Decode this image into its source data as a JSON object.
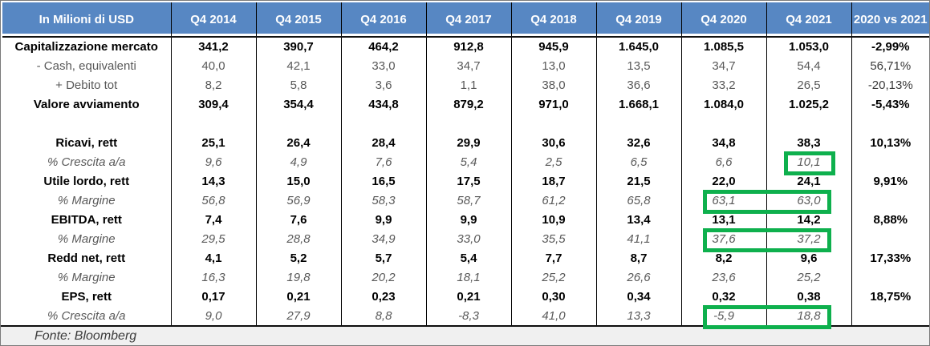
{
  "chart_data": {
    "type": "table",
    "title": "In Milioni di USD",
    "columns": [
      "In Milioni di USD",
      "Q4 2014",
      "Q4 2015",
      "Q4 2016",
      "Q4 2017",
      "Q4 2018",
      "Q4 2019",
      "Q4 2020",
      "Q4 2021",
      "2020 vs 2021"
    ],
    "rows": [
      {
        "id": "cap_mercato",
        "label": "Capitalizzazione mercato",
        "style": "bold",
        "values": [
          "341,2",
          "390,7",
          "464,2",
          "912,8",
          "945,9",
          "1.645,0",
          "1.085,5",
          "1.053,0"
        ],
        "vs": "-2,99%"
      },
      {
        "id": "cash",
        "label": "- Cash, equivalenti",
        "style": "plain",
        "values": [
          "40,0",
          "42,1",
          "33,0",
          "34,7",
          "13,0",
          "13,5",
          "34,7",
          "54,4"
        ],
        "vs": "56,71%"
      },
      {
        "id": "debito",
        "label": "+ Debito tot",
        "style": "plain",
        "values": [
          "8,2",
          "5,8",
          "3,6",
          "1,1",
          "38,0",
          "36,6",
          "33,2",
          "26,5"
        ],
        "vs": "-20,13%"
      },
      {
        "id": "valore_avv",
        "label": "Valore avviamento",
        "style": "bold",
        "values": [
          "309,4",
          "354,4",
          "434,8",
          "879,2",
          "971,0",
          "1.668,1",
          "1.084,0",
          "1.025,2"
        ],
        "vs": "-5,43%"
      },
      {
        "id": "spacer",
        "label": "",
        "style": "spacer",
        "values": [
          "",
          "",
          "",
          "",
          "",
          "",
          "",
          ""
        ],
        "vs": ""
      },
      {
        "id": "ricavi",
        "label": "Ricavi, rett",
        "style": "bold",
        "values": [
          "25,1",
          "26,4",
          "28,4",
          "29,9",
          "30,6",
          "32,6",
          "34,8",
          "38,3"
        ],
        "vs": "10,13%"
      },
      {
        "id": "ricavi_crescita",
        "label": "% Crescita a/a",
        "style": "italic",
        "values": [
          "9,6",
          "4,9",
          "7,6",
          "5,4",
          "2,5",
          "6,5",
          "6,6",
          "10,1"
        ],
        "vs": ""
      },
      {
        "id": "utile_lordo",
        "label": "Utile lordo, rett",
        "style": "bold",
        "values": [
          "14,3",
          "15,0",
          "16,5",
          "17,5",
          "18,7",
          "21,5",
          "22,0",
          "24,1"
        ],
        "vs": "9,91%"
      },
      {
        "id": "utile_margine",
        "label": "% Margine",
        "style": "italic",
        "values": [
          "56,8",
          "56,9",
          "58,3",
          "58,7",
          "61,2",
          "65,8",
          "63,1",
          "63,0"
        ],
        "vs": ""
      },
      {
        "id": "ebitda",
        "label": "EBITDA, rett",
        "style": "bold",
        "values": [
          "7,4",
          "7,6",
          "9,9",
          "9,9",
          "10,9",
          "13,4",
          "13,1",
          "14,2"
        ],
        "vs": "8,88%"
      },
      {
        "id": "ebitda_margine",
        "label": "% Margine",
        "style": "italic",
        "values": [
          "29,5",
          "28,8",
          "34,9",
          "33,0",
          "35,5",
          "41,1",
          "37,6",
          "37,2"
        ],
        "vs": ""
      },
      {
        "id": "redd_net",
        "label": "Redd net, rett",
        "style": "bold",
        "values": [
          "4,1",
          "5,2",
          "5,7",
          "5,4",
          "7,7",
          "8,7",
          "8,2",
          "9,6"
        ],
        "vs": "17,33%"
      },
      {
        "id": "redd_margine",
        "label": "% Margine",
        "style": "italic",
        "values": [
          "16,3",
          "19,8",
          "20,2",
          "18,1",
          "25,2",
          "26,6",
          "23,6",
          "25,2"
        ],
        "vs": ""
      },
      {
        "id": "eps",
        "label": "EPS, rett",
        "style": "bold",
        "values": [
          "0,17",
          "0,21",
          "0,23",
          "0,21",
          "0,30",
          "0,34",
          "0,32",
          "0,38"
        ],
        "vs": "18,75%"
      },
      {
        "id": "eps_crescita",
        "label": "% Crescita a/a",
        "style": "italic",
        "values": [
          "9,0",
          "27,9",
          "8,8",
          "-8,3",
          "41,0",
          "13,3",
          "-5,9",
          "18,8"
        ],
        "vs": ""
      }
    ],
    "highlights": [
      {
        "row_id": "ricavi_crescita",
        "col_start": 7,
        "col_end": 7
      },
      {
        "row_id": "utile_margine",
        "col_start": 6,
        "col_end": 7
      },
      {
        "row_id": "ebitda_margine",
        "col_start": 6,
        "col_end": 7
      },
      {
        "row_id": "eps_crescita",
        "col_start": 6,
        "col_end": 7
      }
    ],
    "source": "Fonte: Bloomberg",
    "layout": {
      "legend": "none",
      "grid": "black cell borders"
    },
    "colors": {
      "header_bg": "#5787c3",
      "header_text": "#ffffff",
      "bold_text": "#000000",
      "muted_text": "#595959",
      "highlight_green": "#0eb04d",
      "footer_bg": "#f0f0f0"
    }
  }
}
